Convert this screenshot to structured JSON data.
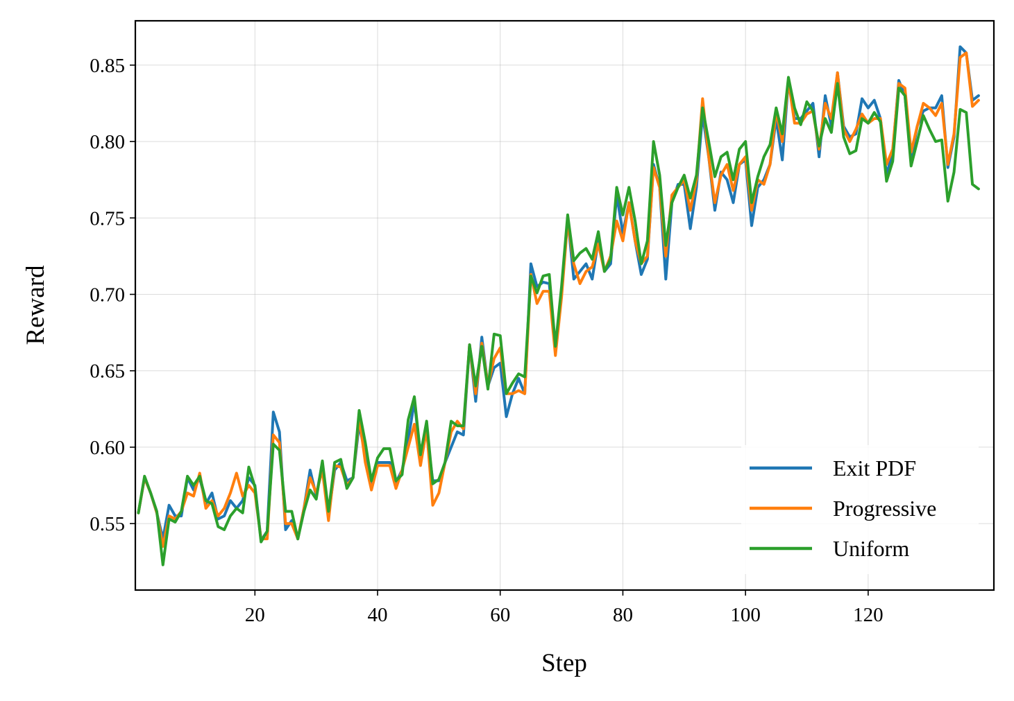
{
  "chart_data": {
    "type": "line",
    "title": "",
    "xlabel": "Step",
    "ylabel": "Reward",
    "xlim": [
      0.5,
      140.5
    ],
    "ylim": [
      0.5065,
      0.879
    ],
    "xticks": [
      20,
      40,
      60,
      80,
      100,
      120
    ],
    "yticks": [
      0.55,
      0.6,
      0.65,
      0.7,
      0.75,
      0.8,
      0.85
    ],
    "ytick_labels": [
      "0.55",
      "0.60",
      "0.65",
      "0.70",
      "0.75",
      "0.80",
      "0.85"
    ],
    "grid": true,
    "legend_position": "bottom-right",
    "x_start": 1,
    "series": [
      {
        "name": "Exit PDF",
        "color": "#1f77b4",
        "values": [
          0.557,
          0.58,
          0.57,
          0.557,
          0.54,
          0.562,
          0.555,
          0.555,
          0.58,
          0.572,
          0.58,
          0.563,
          0.57,
          0.553,
          0.555,
          0.565,
          0.56,
          0.565,
          0.58,
          0.575,
          0.539,
          0.545,
          0.623,
          0.61,
          0.546,
          0.552,
          0.54,
          0.56,
          0.585,
          0.568,
          0.59,
          0.555,
          0.585,
          0.59,
          0.578,
          0.58,
          0.615,
          0.595,
          0.575,
          0.59,
          0.59,
          0.59,
          0.577,
          0.585,
          0.605,
          0.63,
          0.595,
          0.61,
          0.578,
          0.578,
          0.59,
          0.6,
          0.61,
          0.608,
          0.667,
          0.63,
          0.672,
          0.64,
          0.652,
          0.655,
          0.62,
          0.635,
          0.645,
          0.635,
          0.72,
          0.705,
          0.708,
          0.707,
          0.663,
          0.7,
          0.75,
          0.71,
          0.715,
          0.72,
          0.71,
          0.735,
          0.715,
          0.72,
          0.765,
          0.74,
          0.76,
          0.735,
          0.713,
          0.723,
          0.785,
          0.77,
          0.71,
          0.76,
          0.772,
          0.772,
          0.743,
          0.77,
          0.818,
          0.79,
          0.755,
          0.78,
          0.775,
          0.76,
          0.785,
          0.788,
          0.745,
          0.77,
          0.775,
          0.785,
          0.815,
          0.788,
          0.84,
          0.815,
          0.815,
          0.82,
          0.825,
          0.79,
          0.83,
          0.81,
          0.845,
          0.81,
          0.803,
          0.805,
          0.828,
          0.822,
          0.827,
          0.815,
          0.778,
          0.793,
          0.84,
          0.83,
          0.788,
          0.81,
          0.82,
          0.822,
          0.822,
          0.83,
          0.783,
          0.803,
          0.862,
          0.858,
          0.827,
          0.83
        ]
      },
      {
        "name": "Progressive",
        "color": "#ff7f0e",
        "values": [
          0.557,
          0.58,
          0.57,
          0.557,
          0.535,
          0.555,
          0.553,
          0.558,
          0.57,
          0.568,
          0.583,
          0.56,
          0.565,
          0.555,
          0.56,
          0.57,
          0.583,
          0.568,
          0.575,
          0.57,
          0.54,
          0.54,
          0.608,
          0.603,
          0.55,
          0.55,
          0.54,
          0.56,
          0.58,
          0.57,
          0.585,
          0.552,
          0.588,
          0.587,
          0.575,
          0.58,
          0.62,
          0.59,
          0.572,
          0.588,
          0.588,
          0.588,
          0.573,
          0.585,
          0.6,
          0.615,
          0.588,
          0.612,
          0.562,
          0.57,
          0.59,
          0.61,
          0.617,
          0.612,
          0.667,
          0.635,
          0.668,
          0.64,
          0.658,
          0.665,
          0.635,
          0.635,
          0.637,
          0.635,
          0.713,
          0.694,
          0.702,
          0.702,
          0.66,
          0.698,
          0.748,
          0.72,
          0.707,
          0.715,
          0.718,
          0.733,
          0.715,
          0.725,
          0.748,
          0.735,
          0.76,
          0.735,
          0.72,
          0.725,
          0.783,
          0.77,
          0.725,
          0.765,
          0.77,
          0.775,
          0.755,
          0.775,
          0.828,
          0.79,
          0.76,
          0.778,
          0.785,
          0.768,
          0.785,
          0.79,
          0.755,
          0.775,
          0.772,
          0.785,
          0.82,
          0.8,
          0.84,
          0.812,
          0.812,
          0.818,
          0.82,
          0.795,
          0.825,
          0.815,
          0.845,
          0.808,
          0.8,
          0.808,
          0.818,
          0.812,
          0.815,
          0.815,
          0.785,
          0.795,
          0.838,
          0.835,
          0.793,
          0.81,
          0.825,
          0.822,
          0.817,
          0.825,
          0.785,
          0.805,
          0.855,
          0.858,
          0.823,
          0.827
        ]
      },
      {
        "name": "Uniform",
        "color": "#2ca02c",
        "values": [
          0.557,
          0.581,
          0.57,
          0.558,
          0.523,
          0.553,
          0.551,
          0.558,
          0.581,
          0.575,
          0.581,
          0.565,
          0.563,
          0.548,
          0.546,
          0.555,
          0.56,
          0.557,
          0.587,
          0.574,
          0.538,
          0.545,
          0.602,
          0.598,
          0.558,
          0.558,
          0.54,
          0.558,
          0.572,
          0.566,
          0.591,
          0.558,
          0.59,
          0.592,
          0.573,
          0.58,
          0.624,
          0.603,
          0.578,
          0.593,
          0.599,
          0.599,
          0.578,
          0.582,
          0.618,
          0.633,
          0.595,
          0.617,
          0.576,
          0.579,
          0.59,
          0.617,
          0.614,
          0.614,
          0.667,
          0.64,
          0.666,
          0.638,
          0.674,
          0.673,
          0.635,
          0.642,
          0.648,
          0.646,
          0.712,
          0.701,
          0.712,
          0.713,
          0.666,
          0.705,
          0.752,
          0.722,
          0.727,
          0.73,
          0.723,
          0.741,
          0.715,
          0.723,
          0.77,
          0.752,
          0.77,
          0.748,
          0.72,
          0.735,
          0.8,
          0.778,
          0.732,
          0.76,
          0.77,
          0.778,
          0.763,
          0.778,
          0.822,
          0.8,
          0.777,
          0.79,
          0.793,
          0.775,
          0.795,
          0.8,
          0.76,
          0.777,
          0.79,
          0.798,
          0.822,
          0.805,
          0.842,
          0.822,
          0.811,
          0.826,
          0.82,
          0.797,
          0.815,
          0.806,
          0.838,
          0.803,
          0.792,
          0.794,
          0.815,
          0.812,
          0.819,
          0.813,
          0.774,
          0.787,
          0.835,
          0.83,
          0.784,
          0.8,
          0.817,
          0.808,
          0.8,
          0.801,
          0.761,
          0.78,
          0.821,
          0.819,
          0.772,
          0.769
        ]
      }
    ]
  }
}
